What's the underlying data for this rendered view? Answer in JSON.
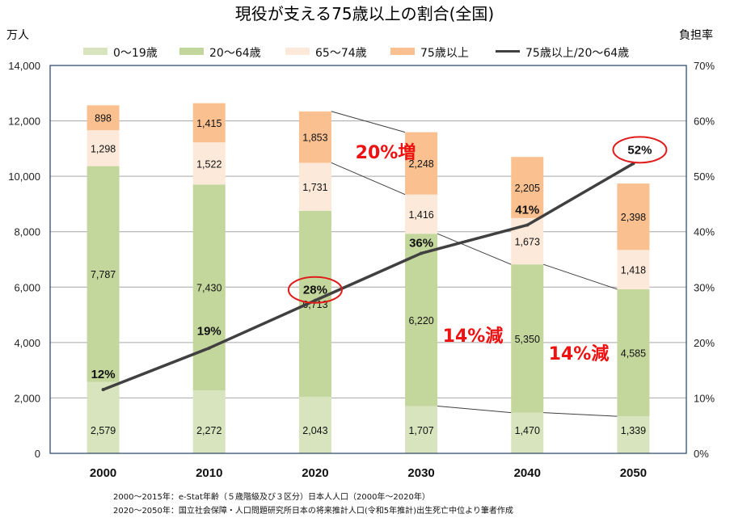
{
  "chart_data": {
    "type": "bar",
    "subtype": "stacked-bar-with-line",
    "title": "現役が支える75歳以上の割合(全国)",
    "ylabel": "万人",
    "y2label": "負担率",
    "ylim": [
      0,
      14000
    ],
    "y2lim": [
      0,
      70
    ],
    "yticks": [
      "0",
      "2,000",
      "4,000",
      "6,000",
      "8,000",
      "10,000",
      "12,000",
      "14,000"
    ],
    "y2ticks": [
      "0%",
      "10%",
      "20%",
      "30%",
      "40%",
      "50%",
      "60%",
      "70%"
    ],
    "grid": true,
    "legend_position": "top",
    "categories": [
      "2000",
      "2010",
      "2020",
      "2030",
      "2040",
      "2050"
    ],
    "series": [
      {
        "name": "0〜19歳",
        "color": "#d7e4bd",
        "values": [
          2579,
          2272,
          2043,
          1707,
          1470,
          1339
        ],
        "labels": [
          "2,579",
          "2,272",
          "2,043",
          "1,707",
          "1,470",
          "1,339"
        ]
      },
      {
        "name": "20〜64歳",
        "color": "#c3d69b",
        "values": [
          7787,
          7430,
          6713,
          6220,
          5350,
          4585
        ],
        "labels": [
          "7,787",
          "7,430",
          "6,713",
          "6,220",
          "5,350",
          "4,585"
        ]
      },
      {
        "name": "65〜74歳",
        "color": "#fde9d9",
        "values": [
          1298,
          1522,
          1731,
          1416,
          1673,
          1418
        ],
        "labels": [
          "1,298",
          "1,522",
          "1,731",
          "1,416",
          "1,673",
          "1,418"
        ]
      },
      {
        "name": "75歳以上",
        "color": "#fac090",
        "values": [
          898,
          1415,
          1853,
          2248,
          2205,
          2398
        ],
        "labels": [
          "898",
          "1,415",
          "1,853",
          "2,248",
          "2,205",
          "2,398"
        ]
      }
    ],
    "line_series": {
      "name": "75歳以上/20〜64歳",
      "axis": "secondary",
      "color": "#404040",
      "values": [
        11.5,
        19,
        27.6,
        36.1,
        41.2,
        52.3
      ],
      "labels": [
        "12%",
        "19%",
        "28%",
        "36%",
        "41%",
        "52%"
      ],
      "circled": [
        2,
        5
      ]
    },
    "annotations": [
      {
        "text": "20%増",
        "between": [
          "2020",
          "2030"
        ],
        "series": "75歳以上"
      },
      {
        "text": "14%減",
        "between": [
          "2030",
          "2040"
        ],
        "series": "20〜64歳"
      },
      {
        "text": "14%減",
        "between": [
          "2040",
          "2050"
        ],
        "series": "20〜64歳"
      }
    ],
    "source_notes": [
      "2000〜2015年：e-Stat年齢（５歳階級及び３区分）日本人人口（2000年〜2020年）",
      "2020〜2050年：国立社会保障・人口問題研究所日本の将来推計人口(令和5年推計)出生死亡中位より筆者作成"
    ]
  }
}
